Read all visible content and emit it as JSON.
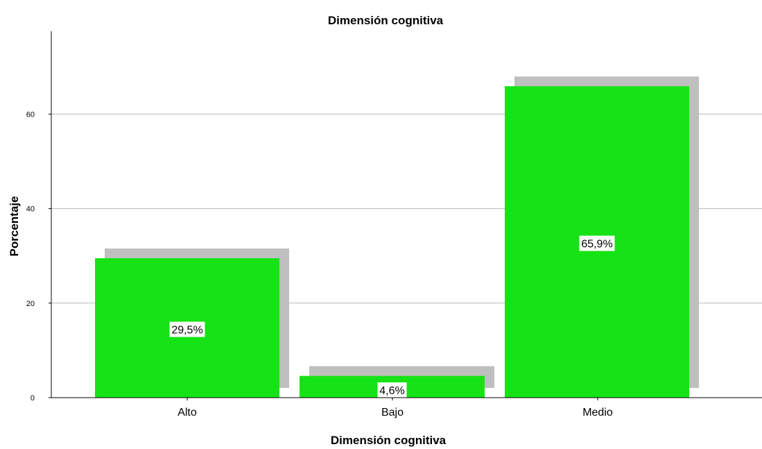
{
  "chart_data": {
    "type": "bar",
    "title": "Dimensión cognitiva",
    "xlabel": "Dimensión cognitiva",
    "ylabel": "Porcentaje",
    "categories": [
      "Alto",
      "Bajo",
      "Medio"
    ],
    "values": [
      29.5,
      4.6,
      65.9
    ],
    "data_labels": [
      "29,5%",
      "4,6%",
      "65,9%"
    ],
    "ylim": [
      0,
      75
    ],
    "yticks": [
      0,
      20,
      40,
      60
    ],
    "ytick_labels": [
      "0",
      "20",
      "40",
      "60"
    ],
    "grid": true,
    "legend": "none",
    "colors": {
      "bar": "#16e316",
      "shadow": "#bfbfbf",
      "grid": "#b8b8b8",
      "axis": "#000000",
      "label_bg": "#ffffff"
    }
  }
}
